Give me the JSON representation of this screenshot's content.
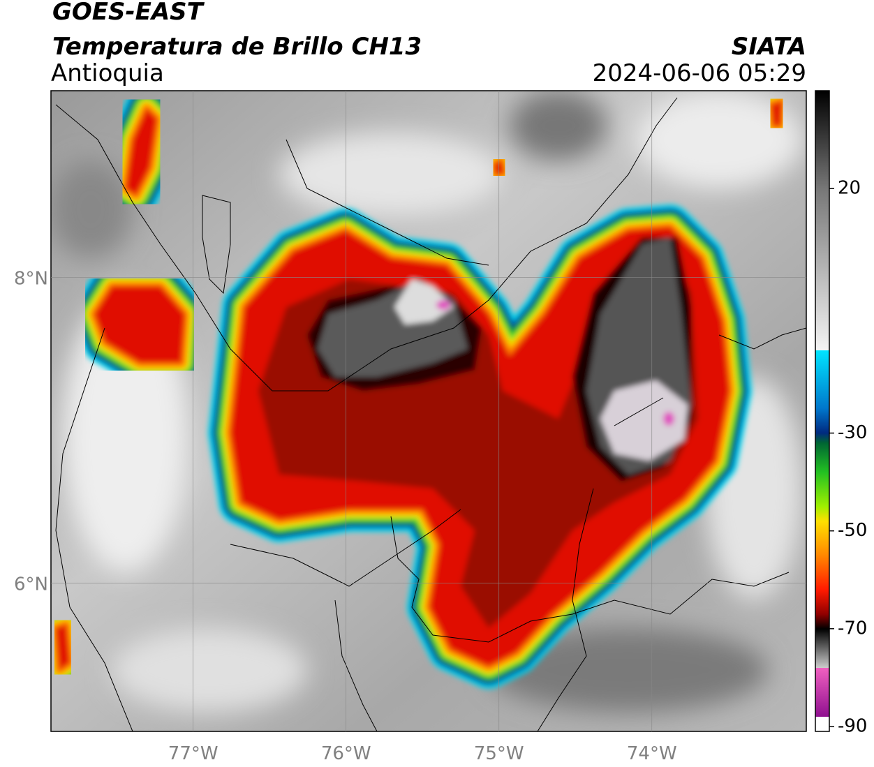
{
  "header": {
    "title": "GOES-EAST",
    "subtitle": "Temperatura de Brillo CH13",
    "region": "Antioquia",
    "source": "SIATA",
    "timestamp": "2024-06-06 05:29"
  },
  "map": {
    "xlim": [
      -77.93,
      -72.99
    ],
    "ylim": [
      5.03,
      9.22
    ],
    "xticks": [
      {
        "value": -77,
        "label": "77°W"
      },
      {
        "value": -76,
        "label": "76°W"
      },
      {
        "value": -75,
        "label": "75°W"
      },
      {
        "value": -74,
        "label": "74°W"
      }
    ],
    "yticks": [
      {
        "value": 6,
        "label": "6°N"
      },
      {
        "value": 8,
        "label": "8°N"
      }
    ],
    "grid": true
  },
  "colorbar": {
    "lim": [
      -91,
      40
    ],
    "ticks": [
      -90,
      -70,
      -50,
      -30,
      20
    ]
  }
}
